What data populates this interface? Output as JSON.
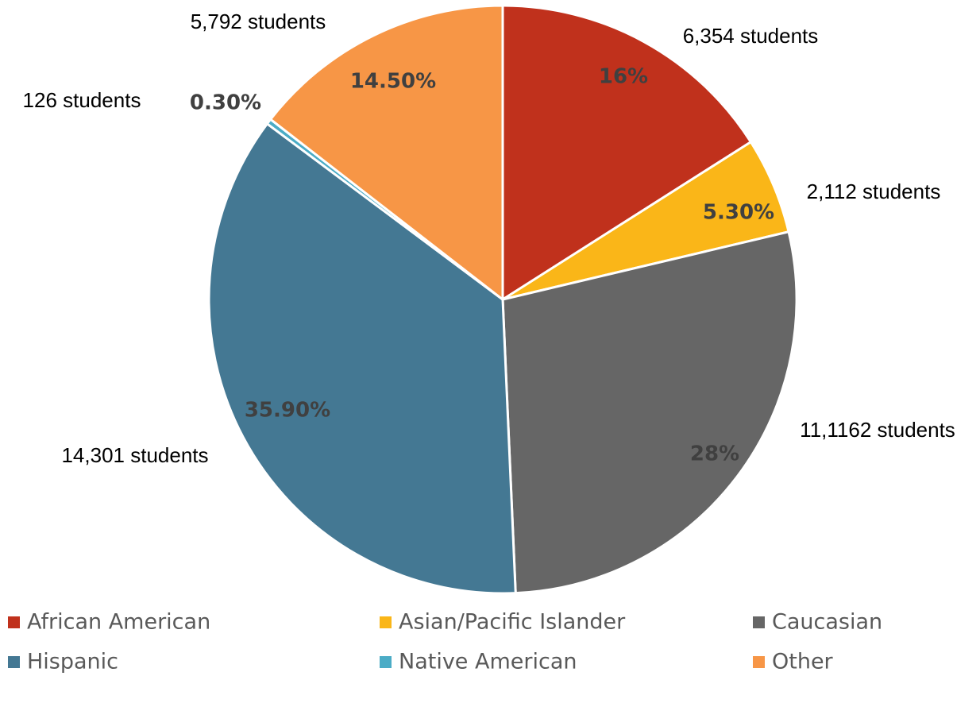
{
  "chart_data": {
    "type": "pie",
    "categories": [
      "African American",
      "Asian/Pacific Islander",
      "Caucasian",
      "Hispanic",
      "Native American",
      "Other"
    ],
    "values": [
      16,
      5.3,
      28,
      35.9,
      0.3,
      14.5
    ],
    "value_labels": [
      "16%",
      "5.30%",
      "28%",
      "35.90%",
      "0.30%",
      "14.50%"
    ],
    "annotations": [
      "6,354 students",
      "2,112 students",
      "11,1162 students",
      "14,301 students",
      "126 students",
      "5,792 students"
    ],
    "colors": [
      "#c0311c",
      "#fab618",
      "#666666",
      "#447893",
      "#4bacc6",
      "#f79646"
    ],
    "legend": "bottom"
  }
}
